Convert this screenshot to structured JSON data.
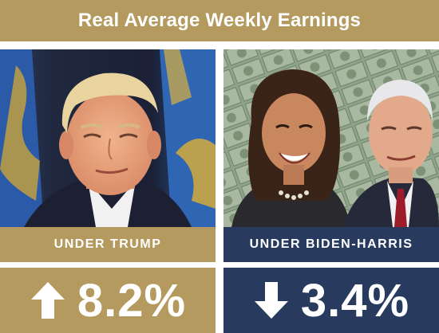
{
  "title": "Real Average Weekly Earnings",
  "colors": {
    "gold": "#b49a5f",
    "navy": "#283b5f",
    "text": "#ffffff"
  },
  "left_panel": {
    "label": "UNDER TRUMP",
    "value": "8.2%",
    "arrow_icon": "arrow-up-icon"
  },
  "right_panel": {
    "label": "UNDER BIDEN-HARRIS",
    "value": "3.4%",
    "arrow_icon": "arrow-down-icon"
  }
}
